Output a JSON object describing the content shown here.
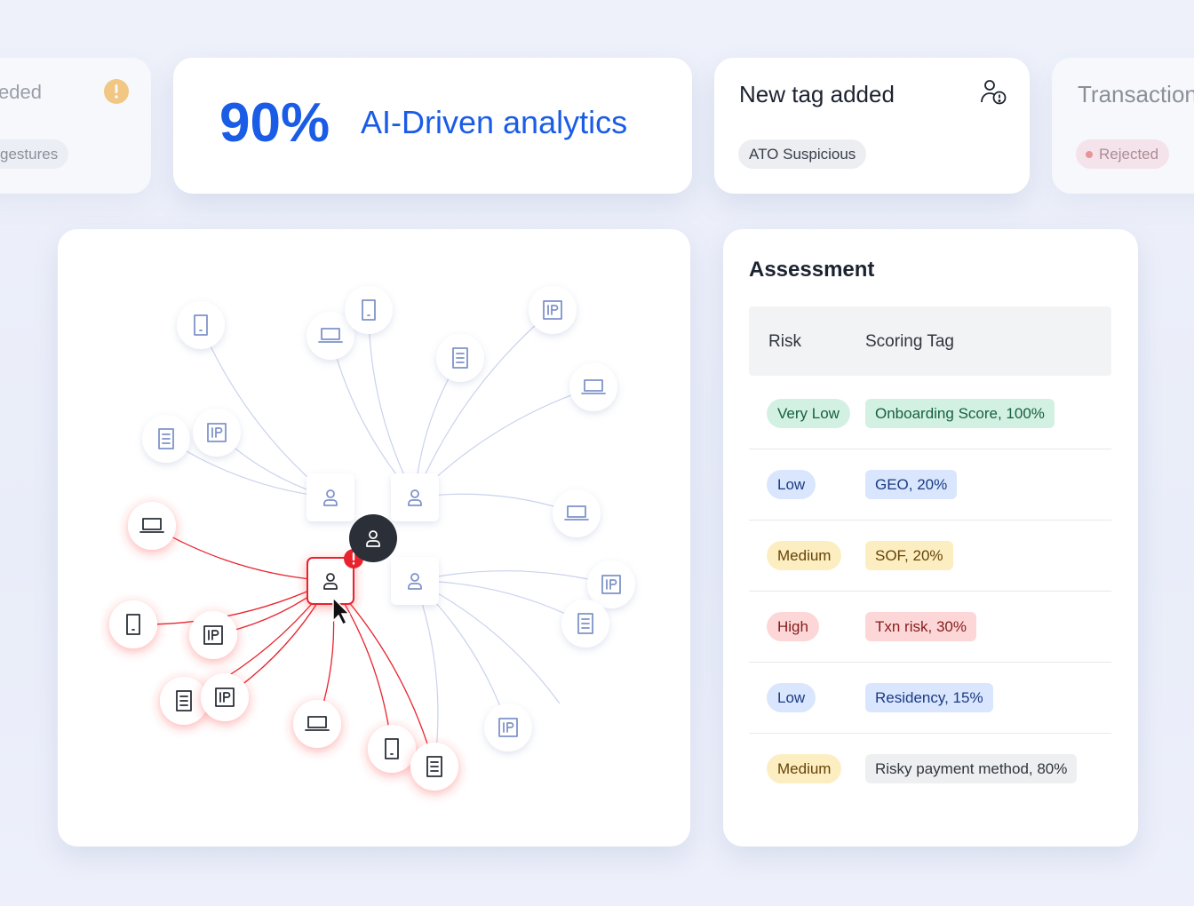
{
  "cards": [
    {
      "title": "eded",
      "tag": "gestures"
    },
    {
      "stat": "90%",
      "title": "AI-Driven analytics"
    },
    {
      "title": "New tag added",
      "tag": "ATO Suspicious"
    },
    {
      "title": "Transaction",
      "tag": "Rejected"
    }
  ],
  "assessment": {
    "title": "Assessment",
    "columns": [
      "Risk",
      "Scoring Tag"
    ],
    "rows": [
      [
        "Very Low",
        "Onboarding Score, 100%"
      ],
      [
        "Low",
        "GEO, 20%"
      ],
      [
        "Medium",
        "SOF, 20%"
      ],
      [
        "High",
        "Txn risk, 30%"
      ],
      [
        "Low",
        "Residency, 15%"
      ],
      [
        "Medium",
        "Risky payment method, 80%"
      ]
    ]
  }
}
